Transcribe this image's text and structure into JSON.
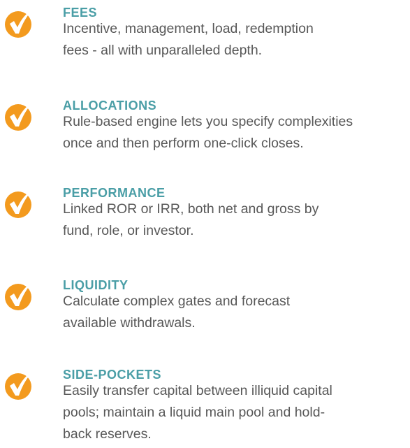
{
  "features": [
    {
      "title": "FEES",
      "lines": [
        "Incentive, management, load, redemption",
        "fees - all with unparalleled depth."
      ]
    },
    {
      "title": "ALLOCATIONS",
      "lines": [
        "Rule-based engine lets you specify complexities",
        "once and then perform one-click closes."
      ]
    },
    {
      "title": "PERFORMANCE",
      "lines": [
        "Linked ROR or IRR, both net and gross by",
        "fund, role, or investor."
      ]
    },
    {
      "title": "LIQUIDITY",
      "lines": [
        "Calculate complex gates and forecast",
        "available withdrawals."
      ]
    },
    {
      "title": "SIDE-POCKETS",
      "lines": [
        "Easily transfer capital between illiquid capital",
        "pools; maintain a liquid main pool and hold-",
        "back reserves."
      ]
    }
  ]
}
